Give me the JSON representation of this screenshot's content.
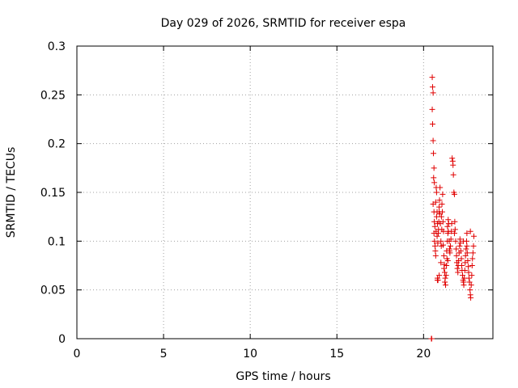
{
  "chart_data": {
    "type": "scatter",
    "title": "Day 029 of 2026, SRMTID for receiver espa",
    "xlabel": "GPS time / hours",
    "ylabel": "SRMTID / TECUs",
    "xlim": [
      0,
      24
    ],
    "ylim": [
      0,
      0.3
    ],
    "xticks": [
      0,
      5,
      10,
      15,
      20
    ],
    "xtick_labels": [
      "0",
      "5",
      "10",
      "15",
      "20"
    ],
    "yticks": [
      0,
      0.05,
      0.1,
      0.15,
      0.2,
      0.25,
      0.3
    ],
    "ytick_labels": [
      "0",
      "0.05",
      "0.1",
      "0.15",
      "0.2",
      "0.25",
      "0.3"
    ],
    "grid": true,
    "marker": "+",
    "marker_color": "#e00000",
    "series": [
      {
        "name": "SRMTID",
        "x": [
          20.45,
          20.47,
          20.5,
          20.52,
          20.55,
          20.5,
          20.52,
          20.55,
          20.57,
          20.6,
          20.62,
          20.58,
          20.55,
          20.6,
          20.62,
          20.65,
          20.6,
          20.63,
          20.66,
          20.68,
          20.7,
          20.72,
          20.75,
          20.7,
          20.73,
          20.75,
          20.78,
          20.8,
          20.78,
          20.82,
          20.85,
          20.8,
          20.83,
          20.86,
          20.88,
          20.9,
          20.92,
          20.95,
          20.9,
          20.93,
          20.97,
          21.0,
          21.02,
          21.05,
          21.03,
          21.06,
          21.1,
          21.08,
          21.12,
          21.15,
          21.13,
          21.17,
          21.2,
          21.18,
          21.22,
          21.25,
          21.23,
          21.27,
          21.3,
          21.32,
          21.35,
          21.33,
          21.37,
          21.4,
          21.38,
          21.42,
          21.45,
          21.43,
          21.48,
          21.5,
          21.52,
          21.55,
          21.58,
          21.6,
          21.62,
          21.65,
          21.68,
          21.7,
          21.72,
          21.75,
          21.78,
          21.8,
          21.82,
          21.78,
          21.85,
          21.88,
          21.9,
          21.92,
          21.95,
          21.98,
          22.0,
          22.02,
          22.05,
          22.08,
          22.1,
          22.12,
          22.15,
          22.18,
          22.2,
          22.22,
          22.25,
          22.28,
          22.3,
          22.32,
          22.35,
          22.38,
          22.4,
          22.42,
          22.45,
          22.48,
          22.5,
          22.52,
          22.55,
          22.58,
          22.6,
          22.62,
          22.65,
          22.68,
          22.7,
          22.72,
          22.75,
          22.78,
          22.8,
          22.82,
          22.85,
          22.88,
          22.9,
          22.7,
          22.5,
          22.3,
          21.5,
          21.4,
          21.0,
          20.9,
          20.8
        ],
        "y": [
          0.0,
          0.0,
          0.268,
          0.258,
          0.252,
          0.235,
          0.22,
          0.203,
          0.19,
          0.175,
          0.16,
          0.165,
          0.138,
          0.13,
          0.12,
          0.115,
          0.108,
          0.1,
          0.095,
          0.09,
          0.085,
          0.11,
          0.125,
          0.14,
          0.155,
          0.15,
          0.13,
          0.118,
          0.105,
          0.098,
          0.108,
          0.062,
          0.06,
          0.112,
          0.12,
          0.13,
          0.142,
          0.155,
          0.135,
          0.128,
          0.118,
          0.1,
          0.095,
          0.112,
          0.125,
          0.138,
          0.148,
          0.13,
          0.12,
          0.11,
          0.096,
          0.085,
          0.076,
          0.072,
          0.068,
          0.062,
          0.058,
          0.055,
          0.065,
          0.075,
          0.082,
          0.09,
          0.1,
          0.108,
          0.115,
          0.122,
          0.118,
          0.11,
          0.1,
          0.092,
          0.088,
          0.095,
          0.102,
          0.11,
          0.118,
          0.185,
          0.182,
          0.178,
          0.168,
          0.15,
          0.148,
          0.12,
          0.112,
          0.108,
          0.1,
          0.092,
          0.085,
          0.078,
          0.072,
          0.068,
          0.075,
          0.08,
          0.088,
          0.095,
          0.102,
          0.098,
          0.09,
          0.082,
          0.075,
          0.07,
          0.065,
          0.06,
          0.058,
          0.055,
          0.062,
          0.07,
          0.078,
          0.085,
          0.092,
          0.1,
          0.095,
          0.088,
          0.08,
          0.074,
          0.068,
          0.062,
          0.058,
          0.05,
          0.045,
          0.042,
          0.055,
          0.065,
          0.075,
          0.082,
          0.088,
          0.095,
          0.105,
          0.11,
          0.108,
          0.1,
          0.09,
          0.08,
          0.078,
          0.065,
          0.06
        ]
      }
    ]
  }
}
